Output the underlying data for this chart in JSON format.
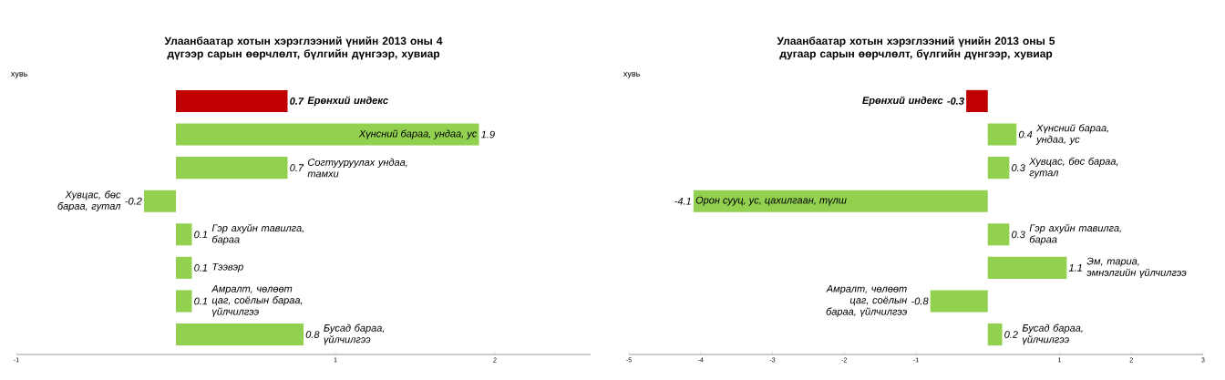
{
  "chart_data": [
    {
      "type": "bar",
      "orientation": "horizontal",
      "title": "Улаанбаатар хотын хэрэглээний үнийн 2013 оны 4 дүгээр сарын өөрчлөлт, бүлгийн дүнгээр, хувиар",
      "ylabel": "хувь",
      "categories": [
        "Ерөнхий индекс",
        "Хүнсний бараа, ундаа, ус",
        "Согтууруулах ундаа, тамхи",
        "Хувцас, бөс бараа, гутал",
        "Гэр ахуйн тавилга, бараа",
        "Тээвэр",
        "Амралт, чөлөөт цаг, соёлын бараа, үйлчилгээ",
        "Бусад бараа, үйлчилгээ"
      ],
      "values": [
        0.7,
        1.9,
        0.7,
        -0.2,
        0.1,
        0.1,
        0.1,
        0.8
      ],
      "colors": [
        "#c00000",
        "#92d050",
        "#92d050",
        "#92d050",
        "#92d050",
        "#92d050",
        "#92d050",
        "#92d050"
      ],
      "data_labels": true,
      "xlim": [
        -1,
        2.6
      ],
      "xticks": [
        -1,
        1,
        2
      ]
    },
    {
      "type": "bar",
      "orientation": "horizontal",
      "title": "Улаанбаатар хотын хэрэглээний үнийн 2013 оны 5 дугаар сарын өөрчлөлт, бүлгийн дүнгээр, хувиар",
      "ylabel": "хувь",
      "categories": [
        "Ерөнхий индекс",
        "Хүнсний бараа, ундаа, ус",
        "Хувцас, бөс бараа, гутал",
        "Орон сууц, ус, цахилгаан, түлш",
        "Гэр ахуйн тавилга, бараа",
        "Эм, тариа, эмнэлгийн үйлчилгээ",
        "Амралт, чөлөөт цаг, соёлын бараа, үйлчилгээ",
        "Бусад бараа, үйлчилгээ"
      ],
      "values": [
        -0.3,
        0.4,
        0.3,
        -4.1,
        0.3,
        1.1,
        -0.8,
        0.2
      ],
      "colors": [
        "#c00000",
        "#92d050",
        "#92d050",
        "#92d050",
        "#92d050",
        "#92d050",
        "#92d050",
        "#92d050"
      ],
      "data_labels": true,
      "xlim": [
        -5,
        3
      ],
      "xticks": [
        -5,
        -4,
        -3,
        -2,
        -1,
        1,
        2,
        3
      ]
    }
  ]
}
